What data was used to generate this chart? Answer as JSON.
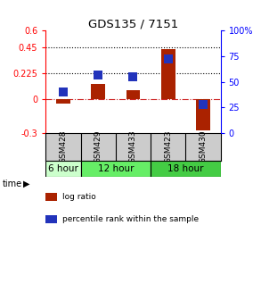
{
  "title": "GDS135 / 7151",
  "samples": [
    "GSM428",
    "GSM429",
    "GSM433",
    "GSM423",
    "GSM430"
  ],
  "log_ratio": [
    -0.04,
    0.13,
    0.08,
    0.44,
    -0.28
  ],
  "percentile_rank": [
    40,
    57,
    55,
    72,
    28
  ],
  "time_groups": [
    {
      "label": "6 hour",
      "span": [
        0,
        1
      ]
    },
    {
      "label": "12 hour",
      "span": [
        1,
        3
      ]
    },
    {
      "label": "18 hour",
      "span": [
        3,
        5
      ]
    }
  ],
  "time_colors": [
    "#ccffcc",
    "#66ee66",
    "#44cc44"
  ],
  "left_yticks": [
    -0.3,
    0,
    0.225,
    0.45,
    0.6
  ],
  "right_yticks": [
    0,
    25,
    50,
    75,
    100
  ],
  "left_ylim": [
    -0.3,
    0.6
  ],
  "right_ylim": [
    0,
    100
  ],
  "hlines": [
    0.225,
    0.45
  ],
  "bar_color": "#aa2200",
  "dot_color": "#2233bb",
  "bar_width": 0.4,
  "dot_size": 55,
  "background_color": "#ffffff",
  "legend_labels": [
    "log ratio",
    "percentile rank within the sample"
  ],
  "legend_colors": [
    "#aa2200",
    "#2233bb"
  ],
  "zero_line_color": "#cc2222",
  "sample_bg_color": "#cccccc"
}
